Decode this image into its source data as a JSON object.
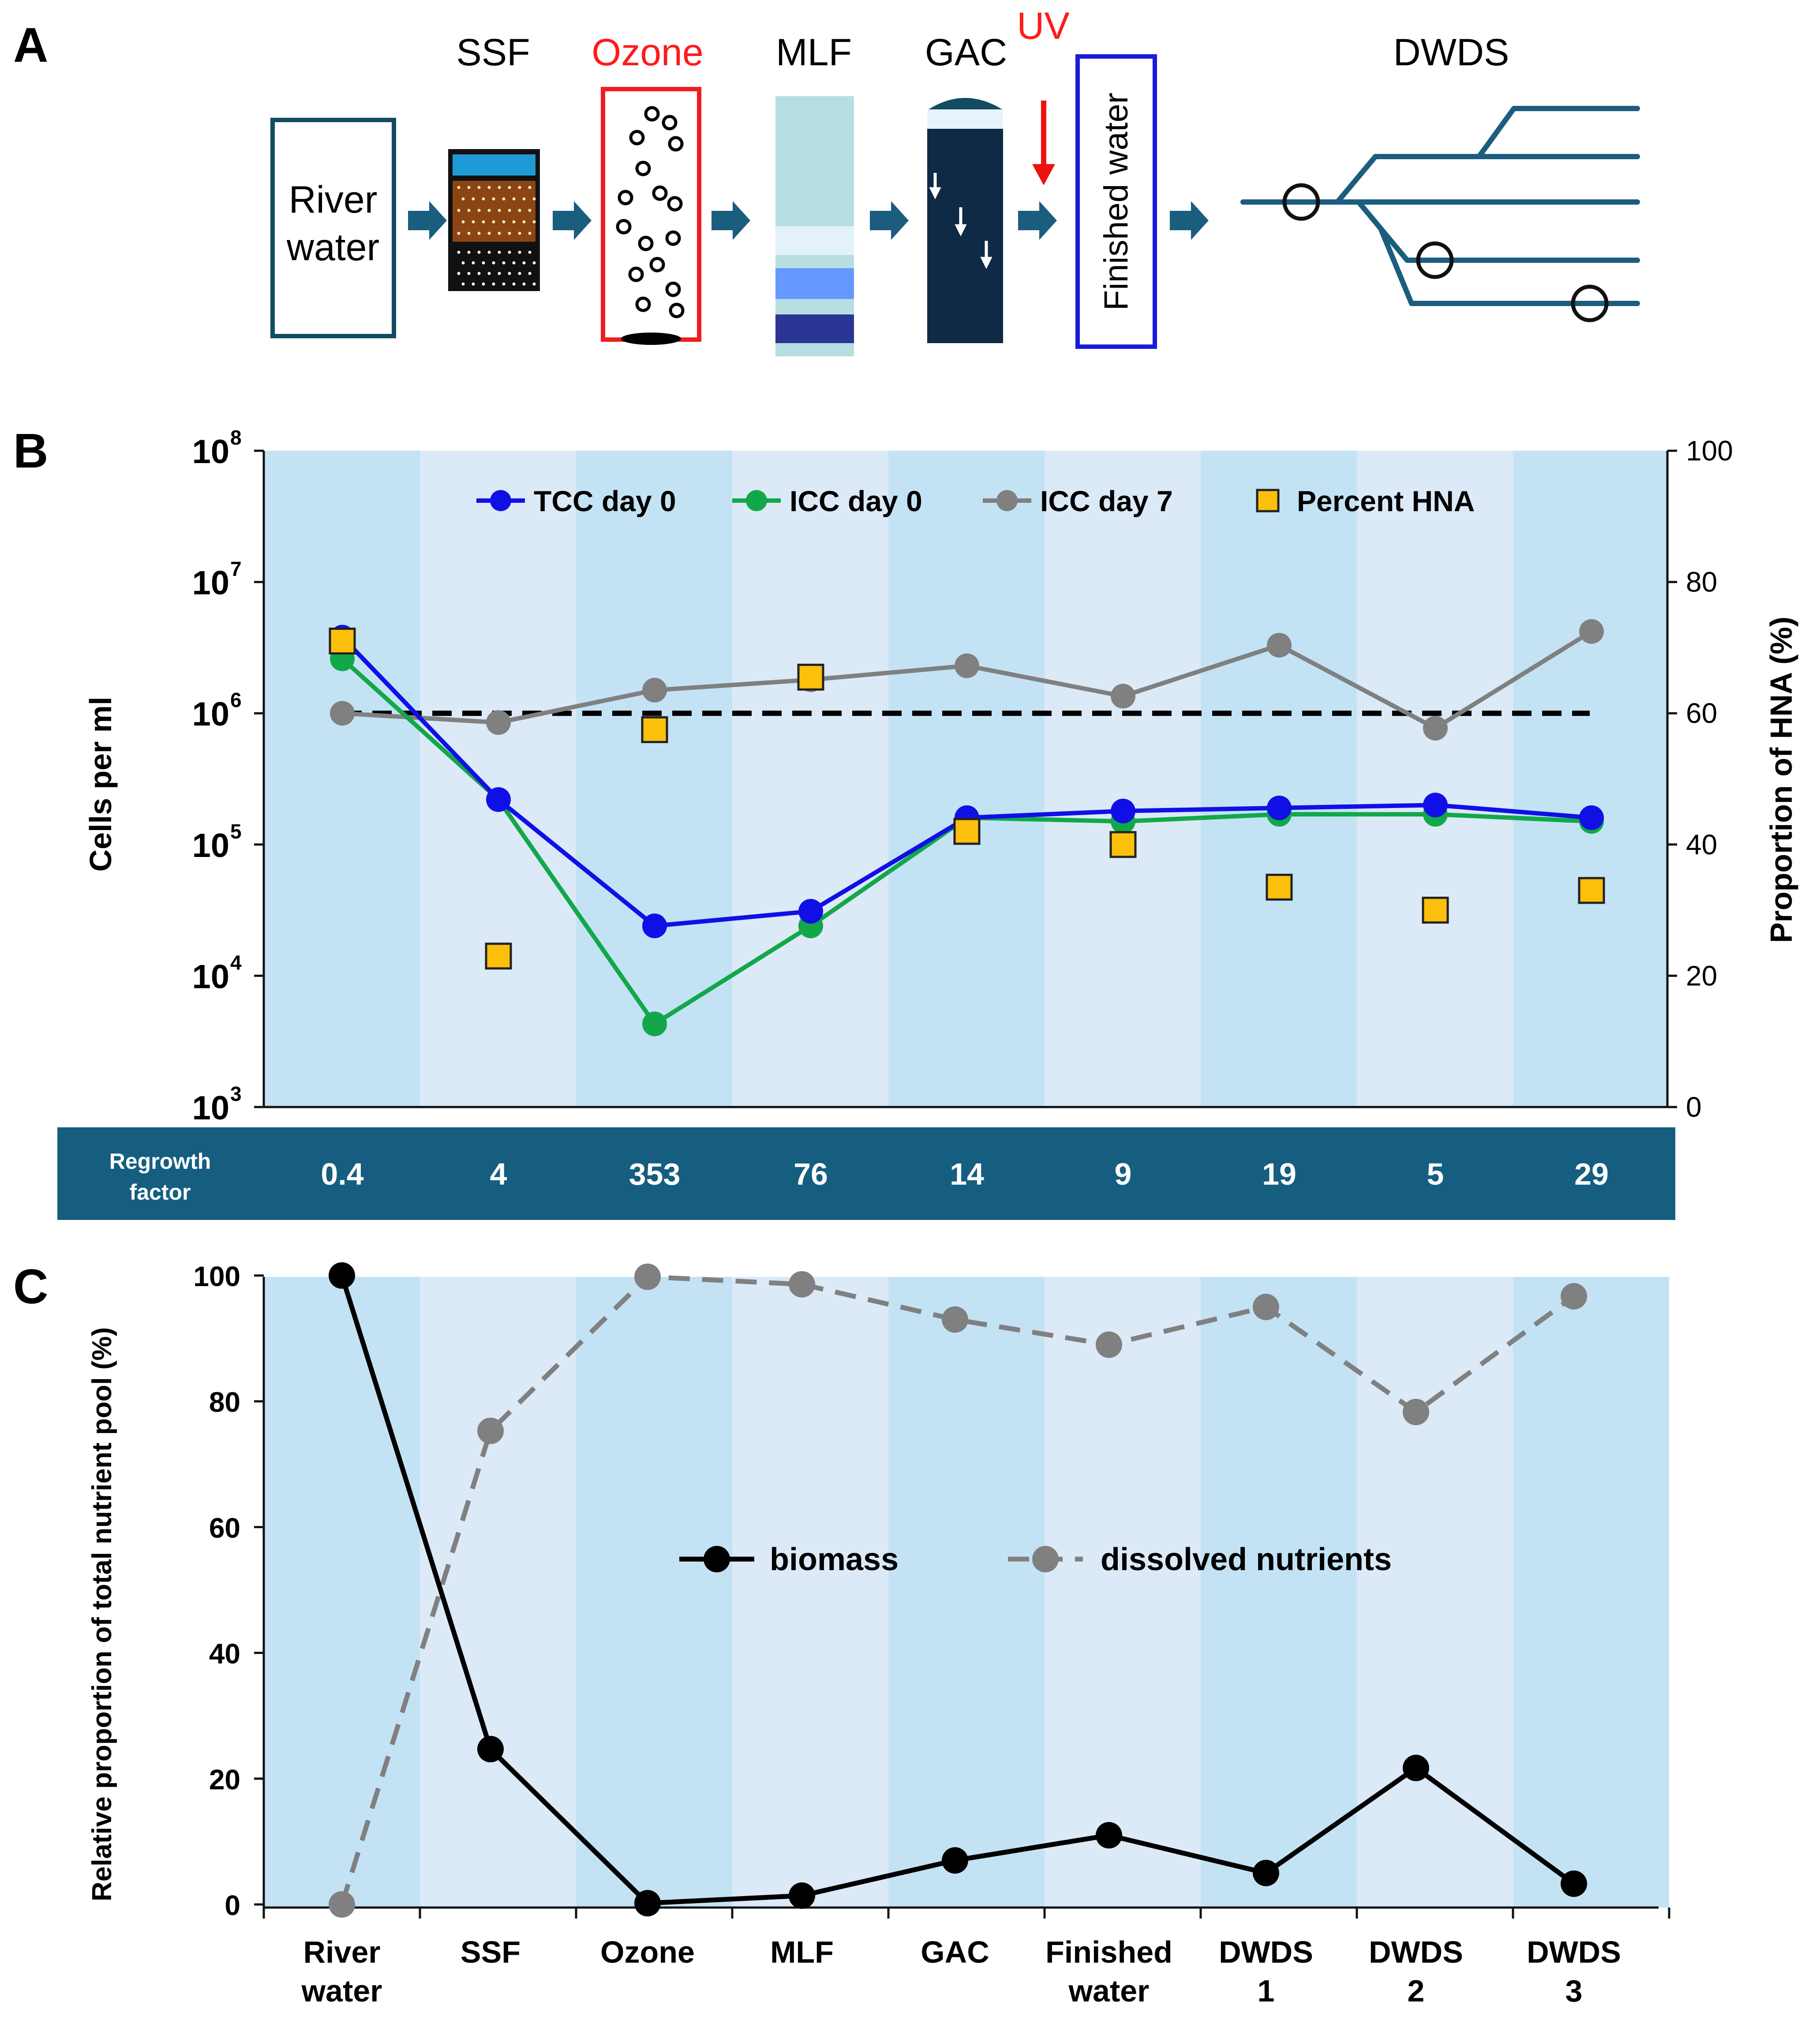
{
  "panel_a": {
    "letter": "A",
    "river_water": [
      "River",
      "water"
    ],
    "ssf": "SSF",
    "ozone": "Ozone",
    "mlf": "MLF",
    "gac": "GAC",
    "uv": "UV",
    "finished_water": "Finished water",
    "dwds": "DWDS"
  },
  "panel_b_letter": "B",
  "panel_c_letter": "C",
  "regrowth": {
    "label": [
      "Regrowth",
      "factor"
    ],
    "values": [
      "0.4",
      "4",
      "353",
      "76",
      "14",
      "9",
      "19",
      "5",
      "29"
    ]
  },
  "chart_data": [
    {
      "type": "line",
      "panel": "B",
      "title": "",
      "categories": [
        "River water",
        "SSF",
        "Ozone",
        "MLF",
        "GAC",
        "Finished water",
        "DWDS 1",
        "DWDS 2",
        "DWDS 3"
      ],
      "ylabel": "Cells  per ml",
      "y2label": "Proportion of HNA (%)",
      "yscale": "log",
      "ylim": [
        1000,
        100000000
      ],
      "y2lim": [
        0,
        100
      ],
      "yticks": [
        {
          "value": 1000,
          "base": "10",
          "exp": "3"
        },
        {
          "value": 10000,
          "base": "10",
          "exp": "4"
        },
        {
          "value": 100000,
          "base": "10",
          "exp": "5"
        },
        {
          "value": 1000000,
          "base": "10",
          "exp": "6"
        },
        {
          "value": 10000000,
          "base": "10",
          "exp": "7"
        },
        {
          "value": 100000000,
          "base": "10",
          "exp": "8"
        }
      ],
      "y2ticks": [
        "0",
        "20",
        "40",
        "60",
        "80",
        "100"
      ],
      "reference_line": {
        "value": 1000000,
        "style": "dashed",
        "color": "#000000"
      },
      "legend_position": "top",
      "series": [
        {
          "name": "TCC day 0",
          "axis": "left",
          "marker": "circle",
          "color": "#1010e6",
          "values": [
            3800000,
            220000,
            24000,
            31000,
            160000,
            180000,
            190000,
            200000,
            160000
          ]
        },
        {
          "name": "ICC day 0",
          "axis": "left",
          "marker": "circle",
          "color": "#12a84a",
          "values": [
            2600000,
            220000,
            4300,
            24000,
            160000,
            150000,
            170000,
            170000,
            150000
          ]
        },
        {
          "name": "ICC day 7",
          "axis": "left",
          "marker": "circle",
          "color": "#808080",
          "values": [
            1000000,
            850000,
            1500000,
            1800000,
            2300000,
            1350000,
            3300000,
            770000,
            4200000
          ]
        },
        {
          "name": "Percent HNA",
          "axis": "right",
          "marker": "square",
          "line": false,
          "color": "#fbbf0c",
          "values": [
            71,
            23,
            57.5,
            65.5,
            42,
            40,
            33.5,
            30,
            33
          ]
        }
      ]
    },
    {
      "type": "line",
      "panel": "C",
      "title": "",
      "categories": [
        "River water",
        "SSF",
        "Ozone",
        "MLF",
        "GAC",
        "Finished water",
        "DWDS 1",
        "DWDS 2",
        "DWDS 3"
      ],
      "xtick_labels": [
        [
          "River",
          "water"
        ],
        [
          "SSF"
        ],
        [
          "Ozone"
        ],
        [
          "MLF"
        ],
        [
          "GAC"
        ],
        [
          "Finished",
          "water"
        ],
        [
          "DWDS",
          "1"
        ],
        [
          "DWDS",
          "2"
        ],
        [
          "DWDS",
          "3"
        ]
      ],
      "ylabel": "Relative proportion of total nutrient pool (%)",
      "ylim": [
        0,
        100
      ],
      "yticks": [
        "0",
        "20",
        "40",
        "60",
        "80",
        "100"
      ],
      "legend_position": "center",
      "series": [
        {
          "name": "biomass",
          "style": "solid",
          "color": "#000000",
          "values": [
            100,
            24.7,
            0.2,
            1.4,
            7.0,
            11.0,
            5.0,
            21.7,
            3.3
          ]
        },
        {
          "name": "dissolved nutrients",
          "style": "dashed",
          "color": "#808080",
          "values": [
            0,
            75.3,
            99.8,
            98.6,
            93.0,
            89.0,
            95.0,
            78.3,
            96.7
          ]
        }
      ]
    }
  ]
}
